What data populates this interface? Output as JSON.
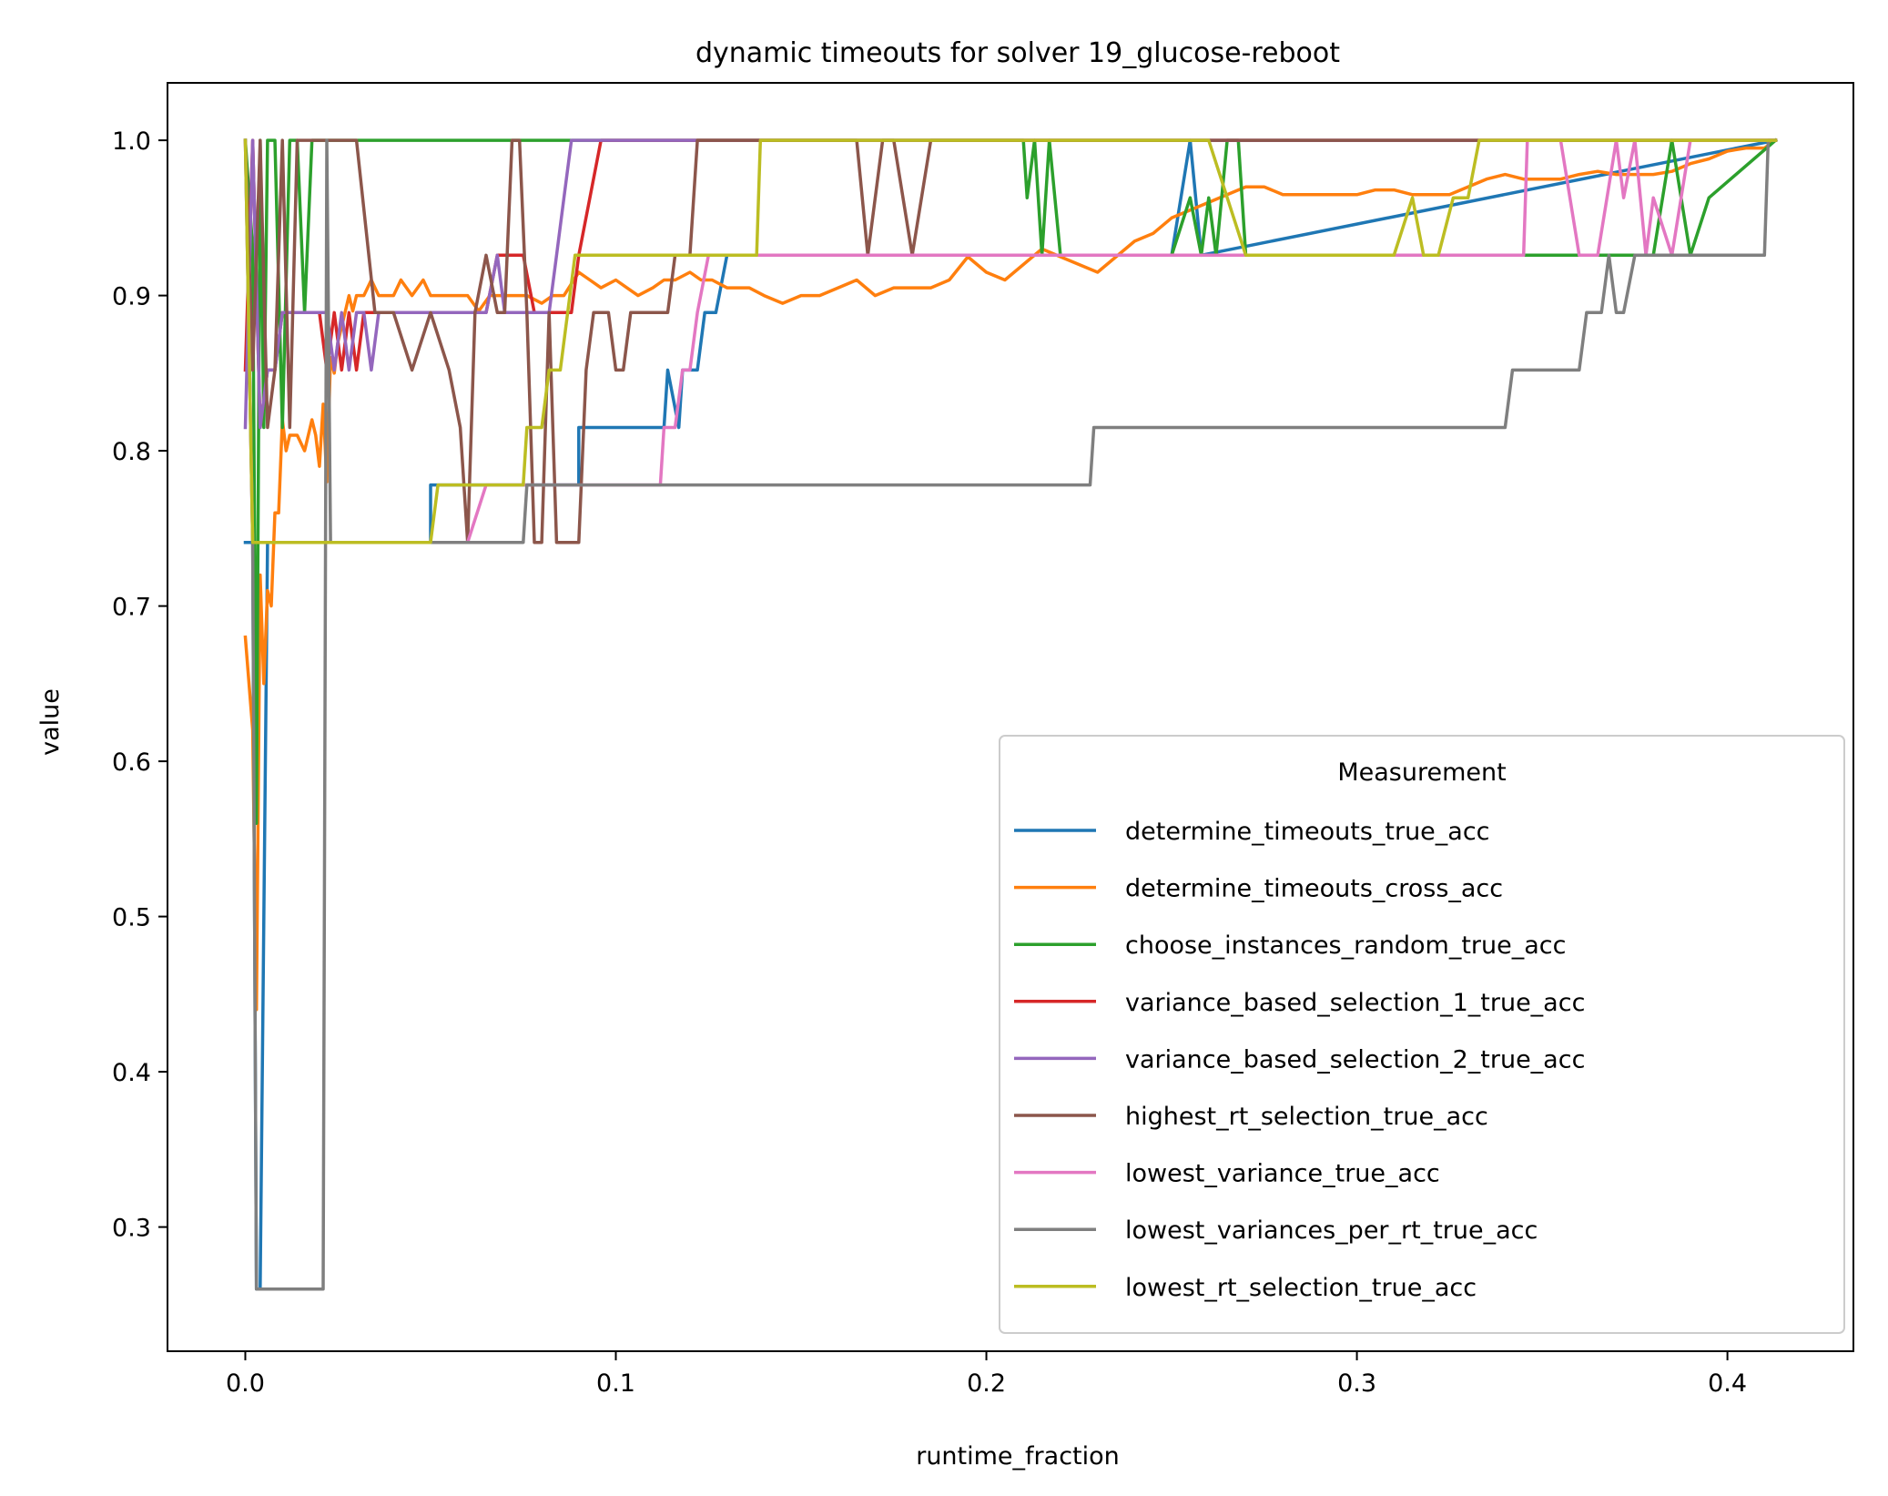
{
  "chart_data": {
    "type": "line",
    "title": "dynamic timeouts for solver 19_glucose-reboot",
    "xlabel": "runtime_fraction",
    "ylabel": "value",
    "xlim": [
      -0.021,
      0.434
    ],
    "ylim": [
      0.22,
      1.037
    ],
    "xticks": [
      0.0,
      0.1,
      0.2,
      0.3,
      0.4
    ],
    "xtick_labels": [
      "0.0",
      "0.1",
      "0.2",
      "0.3",
      "0.4"
    ],
    "yticks": [
      0.3,
      0.4,
      0.5,
      0.6,
      0.7,
      0.8,
      0.9,
      1.0
    ],
    "ytick_labels": [
      "0.3",
      "0.4",
      "0.5",
      "0.6",
      "0.7",
      "0.8",
      "0.9",
      "1.0"
    ],
    "grid": false,
    "legend": {
      "title": "Measurement",
      "placement": "lower-right"
    },
    "series": [
      {
        "name": "determine_timeouts_true_acc",
        "color": "#1f77b4",
        "x": [
          0.0,
          0.002,
          0.003,
          0.004,
          0.006,
          0.05,
          0.05,
          0.09,
          0.09,
          0.113,
          0.114,
          0.117,
          0.118,
          0.122,
          0.124,
          0.127,
          0.13,
          0.25,
          0.255,
          0.258,
          0.413
        ],
        "y": [
          0.741,
          0.741,
          0.26,
          0.26,
          0.741,
          0.741,
          0.778,
          0.778,
          0.815,
          0.815,
          0.852,
          0.815,
          0.852,
          0.852,
          0.889,
          0.889,
          0.926,
          0.926,
          1.0,
          0.926,
          1.0
        ]
      },
      {
        "name": "determine_timeouts_cross_acc",
        "color": "#ff7f0e",
        "x": [
          0.0,
          0.002,
          0.003,
          0.004,
          0.005,
          0.006,
          0.007,
          0.008,
          0.009,
          0.01,
          0.011,
          0.012,
          0.014,
          0.016,
          0.018,
          0.019,
          0.02,
          0.021,
          0.022,
          0.023,
          0.024,
          0.025,
          0.026,
          0.027,
          0.028,
          0.029,
          0.03,
          0.032,
          0.034,
          0.036,
          0.038,
          0.04,
          0.042,
          0.045,
          0.048,
          0.05,
          0.053,
          0.056,
          0.06,
          0.063,
          0.066,
          0.07,
          0.073,
          0.076,
          0.08,
          0.083,
          0.086,
          0.09,
          0.093,
          0.096,
          0.1,
          0.103,
          0.106,
          0.11,
          0.113,
          0.116,
          0.12,
          0.123,
          0.126,
          0.13,
          0.133,
          0.136,
          0.14,
          0.145,
          0.15,
          0.155,
          0.16,
          0.165,
          0.17,
          0.175,
          0.18,
          0.185,
          0.19,
          0.195,
          0.2,
          0.205,
          0.21,
          0.215,
          0.22,
          0.225,
          0.23,
          0.235,
          0.24,
          0.245,
          0.25,
          0.255,
          0.26,
          0.265,
          0.27,
          0.275,
          0.28,
          0.285,
          0.29,
          0.295,
          0.3,
          0.305,
          0.31,
          0.315,
          0.32,
          0.325,
          0.33,
          0.335,
          0.34,
          0.345,
          0.35,
          0.355,
          0.36,
          0.365,
          0.37,
          0.375,
          0.38,
          0.385,
          0.39,
          0.395,
          0.4,
          0.405,
          0.41,
          0.413
        ],
        "y": [
          0.68,
          0.62,
          0.44,
          0.72,
          0.65,
          0.71,
          0.7,
          0.76,
          0.76,
          0.82,
          0.8,
          0.81,
          0.81,
          0.8,
          0.82,
          0.81,
          0.79,
          0.83,
          0.78,
          0.86,
          0.85,
          0.87,
          0.88,
          0.89,
          0.9,
          0.89,
          0.9,
          0.9,
          0.91,
          0.9,
          0.9,
          0.9,
          0.91,
          0.9,
          0.91,
          0.9,
          0.9,
          0.9,
          0.9,
          0.89,
          0.9,
          0.9,
          0.9,
          0.9,
          0.895,
          0.9,
          0.9,
          0.915,
          0.91,
          0.905,
          0.91,
          0.905,
          0.9,
          0.905,
          0.91,
          0.91,
          0.915,
          0.91,
          0.91,
          0.905,
          0.905,
          0.905,
          0.9,
          0.895,
          0.9,
          0.9,
          0.905,
          0.91,
          0.9,
          0.905,
          0.905,
          0.905,
          0.91,
          0.925,
          0.915,
          0.91,
          0.92,
          0.93,
          0.925,
          0.92,
          0.915,
          0.925,
          0.935,
          0.94,
          0.95,
          0.955,
          0.96,
          0.965,
          0.97,
          0.97,
          0.965,
          0.965,
          0.965,
          0.965,
          0.965,
          0.968,
          0.968,
          0.965,
          0.965,
          0.965,
          0.97,
          0.975,
          0.978,
          0.975,
          0.975,
          0.975,
          0.978,
          0.98,
          0.978,
          0.978,
          0.978,
          0.98,
          0.985,
          0.988,
          0.993,
          0.995,
          0.995,
          1.0
        ]
      },
      {
        "name": "choose_instances_random_true_acc",
        "color": "#2ca02c",
        "x": [
          0.0,
          0.002,
          0.003,
          0.004,
          0.005,
          0.006,
          0.008,
          0.01,
          0.012,
          0.014,
          0.016,
          0.018,
          0.02,
          0.21,
          0.211,
          0.213,
          0.215,
          0.217,
          0.22,
          0.225,
          0.23,
          0.25,
          0.255,
          0.258,
          0.26,
          0.262,
          0.265,
          0.268,
          0.27,
          0.275,
          0.28,
          0.38,
          0.385,
          0.39,
          0.395,
          0.413
        ],
        "y": [
          1.0,
          0.93,
          0.56,
          1.0,
          0.815,
          1.0,
          1.0,
          0.815,
          1.0,
          1.0,
          0.889,
          1.0,
          1.0,
          1.0,
          0.963,
          1.0,
          0.926,
          1.0,
          0.926,
          0.926,
          0.926,
          0.926,
          0.963,
          0.926,
          0.963,
          0.926,
          1.0,
          1.0,
          0.926,
          0.926,
          0.926,
          0.926,
          1.0,
          0.926,
          0.963,
          1.0
        ]
      },
      {
        "name": "variance_based_selection_1_true_acc",
        "color": "#d62728",
        "x": [
          0.0,
          0.002,
          0.004,
          0.006,
          0.008,
          0.01,
          0.012,
          0.014,
          0.018,
          0.02,
          0.022,
          0.024,
          0.026,
          0.028,
          0.03,
          0.032,
          0.035,
          0.04,
          0.05,
          0.06,
          0.065,
          0.068,
          0.07,
          0.072,
          0.075,
          0.078,
          0.08,
          0.082,
          0.085,
          0.088,
          0.09,
          0.093,
          0.096,
          0.1,
          0.413
        ],
        "y": [
          0.852,
          1.0,
          0.815,
          0.852,
          0.852,
          0.889,
          0.889,
          0.889,
          0.889,
          0.889,
          0.852,
          0.889,
          0.852,
          0.889,
          0.852,
          0.889,
          0.889,
          0.889,
          0.889,
          0.889,
          0.889,
          0.926,
          0.926,
          0.926,
          0.926,
          0.889,
          0.889,
          0.889,
          0.889,
          0.889,
          0.926,
          0.963,
          1.0,
          1.0,
          1.0
        ]
      },
      {
        "name": "variance_based_selection_2_true_acc",
        "color": "#9467bd",
        "x": [
          0.0,
          0.002,
          0.004,
          0.006,
          0.008,
          0.01,
          0.012,
          0.014,
          0.016,
          0.018,
          0.02,
          0.022,
          0.024,
          0.026,
          0.028,
          0.03,
          0.032,
          0.034,
          0.036,
          0.04,
          0.05,
          0.06,
          0.065,
          0.068,
          0.07,
          0.075,
          0.08,
          0.082,
          0.084,
          0.086,
          0.088,
          0.09,
          0.413
        ],
        "y": [
          0.815,
          1.0,
          0.815,
          0.852,
          0.852,
          0.889,
          0.889,
          0.889,
          0.889,
          0.889,
          0.889,
          0.889,
          0.852,
          0.889,
          0.852,
          0.889,
          0.889,
          0.852,
          0.889,
          0.889,
          0.889,
          0.889,
          0.889,
          0.926,
          0.889,
          0.889,
          0.889,
          0.889,
          0.926,
          0.963,
          1.0,
          1.0,
          1.0
        ]
      },
      {
        "name": "highest_rt_selection_true_acc",
        "color": "#8c564b",
        "x": [
          0.0,
          0.002,
          0.004,
          0.006,
          0.008,
          0.01,
          0.012,
          0.014,
          0.016,
          0.018,
          0.02,
          0.022,
          0.025,
          0.03,
          0.035,
          0.04,
          0.045,
          0.05,
          0.055,
          0.058,
          0.06,
          0.062,
          0.065,
          0.068,
          0.07,
          0.072,
          0.074,
          0.076,
          0.078,
          0.08,
          0.082,
          0.084,
          0.086,
          0.088,
          0.09,
          0.092,
          0.094,
          0.096,
          0.098,
          0.1,
          0.102,
          0.104,
          0.106,
          0.108,
          0.11,
          0.112,
          0.114,
          0.116,
          0.12,
          0.122,
          0.125,
          0.13,
          0.14,
          0.165,
          0.168,
          0.172,
          0.175,
          0.18,
          0.185,
          0.19,
          0.195,
          0.2,
          0.22,
          0.25,
          0.413
        ],
        "y": [
          1.0,
          0.852,
          1.0,
          0.815,
          0.852,
          1.0,
          0.815,
          1.0,
          1.0,
          1.0,
          1.0,
          1.0,
          1.0,
          1.0,
          0.889,
          0.889,
          0.852,
          0.889,
          0.852,
          0.815,
          0.741,
          0.889,
          0.926,
          0.889,
          0.889,
          1.0,
          1.0,
          0.889,
          0.741,
          0.741,
          0.889,
          0.741,
          0.741,
          0.741,
          0.741,
          0.852,
          0.889,
          0.889,
          0.889,
          0.852,
          0.852,
          0.889,
          0.889,
          0.889,
          0.889,
          0.889,
          0.889,
          0.926,
          0.926,
          1.0,
          1.0,
          1.0,
          1.0,
          1.0,
          0.926,
          1.0,
          1.0,
          0.926,
          1.0,
          1.0,
          1.0,
          1.0,
          1.0,
          1.0,
          1.0
        ]
      },
      {
        "name": "lowest_variance_true_acc",
        "color": "#e377c2",
        "x": [
          0.0,
          0.002,
          0.004,
          0.05,
          0.06,
          0.065,
          0.075,
          0.08,
          0.085,
          0.09,
          0.1,
          0.112,
          0.113,
          0.116,
          0.118,
          0.12,
          0.122,
          0.125,
          0.13,
          0.2,
          0.3,
          0.345,
          0.346,
          0.35,
          0.355,
          0.36,
          0.365,
          0.37,
          0.372,
          0.375,
          0.378,
          0.38,
          0.385,
          0.39,
          0.4,
          0.413
        ],
        "y": [
          1.0,
          0.741,
          0.741,
          0.741,
          0.741,
          0.778,
          0.778,
          0.778,
          0.778,
          0.778,
          0.778,
          0.778,
          0.815,
          0.815,
          0.852,
          0.852,
          0.889,
          0.926,
          0.926,
          0.926,
          0.926,
          0.926,
          1.0,
          1.0,
          1.0,
          0.926,
          0.926,
          1.0,
          0.963,
          1.0,
          0.926,
          0.963,
          0.926,
          1.0,
          1.0,
          1.0
        ]
      },
      {
        "name": "lowest_variances_per_rt_true_acc",
        "color": "#7f7f7f",
        "x": [
          0.0,
          0.002,
          0.003,
          0.005,
          0.021,
          0.022,
          0.023,
          0.04,
          0.05,
          0.075,
          0.076,
          0.1,
          0.228,
          0.229,
          0.34,
          0.342,
          0.36,
          0.362,
          0.366,
          0.368,
          0.37,
          0.372,
          0.375,
          0.41,
          0.411,
          0.413
        ],
        "y": [
          1.0,
          0.741,
          0.26,
          0.26,
          0.26,
          1.0,
          0.741,
          0.741,
          0.741,
          0.741,
          0.778,
          0.778,
          0.778,
          0.815,
          0.815,
          0.852,
          0.852,
          0.889,
          0.889,
          0.926,
          0.889,
          0.889,
          0.926,
          0.926,
          1.0,
          1.0
        ]
      },
      {
        "name": "lowest_rt_selection_true_acc",
        "color": "#bcbd22",
        "x": [
          0.0,
          0.002,
          0.003,
          0.004,
          0.05,
          0.052,
          0.075,
          0.076,
          0.08,
          0.082,
          0.085,
          0.087,
          0.089,
          0.1,
          0.12,
          0.138,
          0.139,
          0.2,
          0.26,
          0.27,
          0.3,
          0.31,
          0.315,
          0.318,
          0.322,
          0.326,
          0.33,
          0.333,
          0.336,
          0.34,
          0.413
        ],
        "y": [
          1.0,
          0.741,
          0.741,
          0.741,
          0.741,
          0.778,
          0.778,
          0.815,
          0.815,
          0.852,
          0.852,
          0.889,
          0.926,
          0.926,
          0.926,
          0.926,
          1.0,
          1.0,
          1.0,
          0.926,
          0.926,
          0.926,
          0.963,
          0.926,
          0.926,
          0.963,
          0.963,
          1.0,
          1.0,
          1.0,
          1.0
        ]
      }
    ]
  }
}
